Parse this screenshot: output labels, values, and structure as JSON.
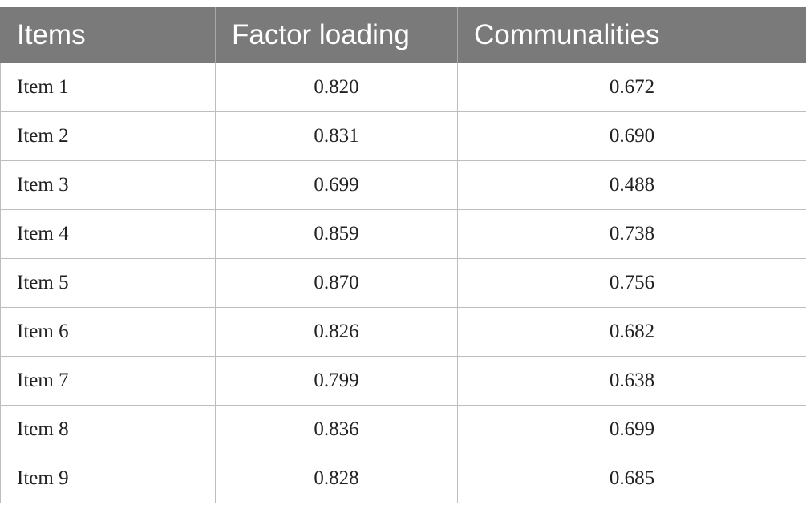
{
  "table": {
    "headers": [
      "Items",
      "Factor loading",
      "Communalities"
    ],
    "rows": [
      {
        "item": "Item 1",
        "factor_loading": "0.820",
        "communalities": "0.672"
      },
      {
        "item": "Item 2",
        "factor_loading": "0.831",
        "communalities": "0.690"
      },
      {
        "item": "Item 3",
        "factor_loading": "0.699",
        "communalities": "0.488"
      },
      {
        "item": "Item 4",
        "factor_loading": "0.859",
        "communalities": "0.738"
      },
      {
        "item": "Item 5",
        "factor_loading": "0.870",
        "communalities": "0.756"
      },
      {
        "item": "Item 6",
        "factor_loading": "0.826",
        "communalities": "0.682"
      },
      {
        "item": "Item 7",
        "factor_loading": "0.799",
        "communalities": "0.638"
      },
      {
        "item": "Item 8",
        "factor_loading": "0.836",
        "communalities": "0.699"
      },
      {
        "item": "Item 9",
        "factor_loading": "0.828",
        "communalities": "0.685"
      }
    ]
  },
  "colors": {
    "header_background": "#7a7a7a",
    "header_text": "#ffffff",
    "grid_lines": "#bdbdbd",
    "body_text": "#222222"
  }
}
